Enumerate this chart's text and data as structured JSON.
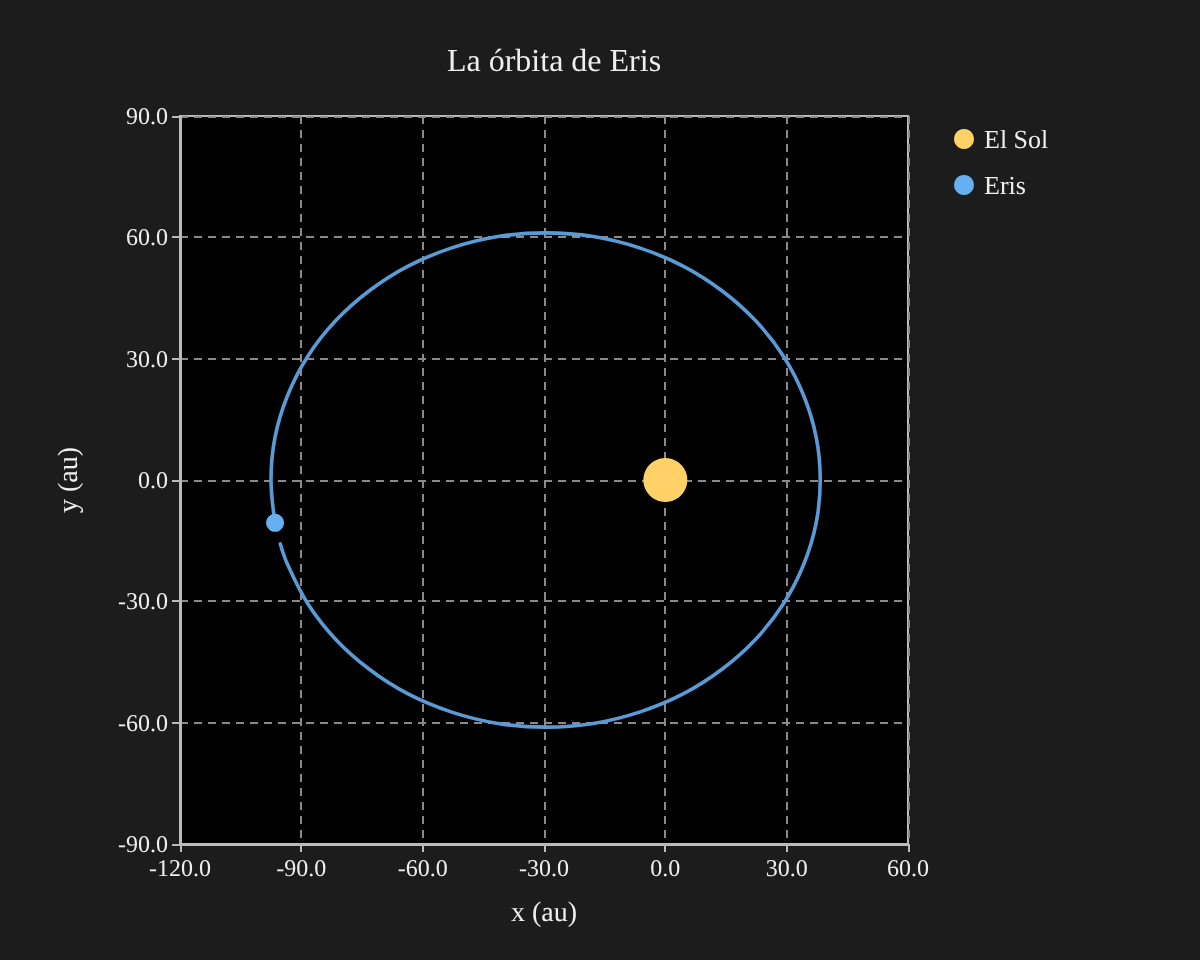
{
  "chart_data": {
    "type": "scatter",
    "title": "La órbita de Eris",
    "xlabel": "x (au)",
    "ylabel": "y (au)",
    "xlim": [
      -120,
      60
    ],
    "xticks": [
      {
        "value": -120,
        "label": "-120.0"
      },
      {
        "value": -90,
        "label": "-90.0"
      },
      {
        "value": -60,
        "label": "-60.0"
      },
      {
        "value": -30,
        "label": "-30.0"
      },
      {
        "value": 0,
        "label": "0.0"
      },
      {
        "value": 30,
        "label": "30.0"
      },
      {
        "value": 60,
        "label": "60.0"
      }
    ],
    "ylim": [
      -90,
      90
    ],
    "yticks": [
      {
        "value": -90,
        "label": "-90.0"
      },
      {
        "value": -60,
        "label": "-60.0"
      },
      {
        "value": -30,
        "label": "-30.0"
      },
      {
        "value": 0,
        "label": "0.0"
      },
      {
        "value": 30,
        "label": "30.0"
      },
      {
        "value": 60,
        "label": "60.0"
      },
      {
        "value": 90,
        "label": "90.0"
      }
    ],
    "grid": true,
    "legend": "top right",
    "marker": "circle",
    "series": [
      {
        "type": "line",
        "marker": "none",
        "color": "#5b9bd5",
        "x": [
          -95.2,
          -93.4,
          -88.4,
          -81.6,
          -73.2,
          -63.6,
          -52.8,
          -41.4,
          -29.6,
          -17.8,
          -6.4,
          4.4,
          14.0,
          22.4,
          29.2,
          34.2,
          37.3,
          38.3,
          37.3,
          34.2,
          29.2,
          22.4,
          14.0,
          4.4,
          -6.4,
          -17.8,
          -29.6,
          -41.4,
          -52.8,
          -63.6,
          -73.2,
          -81.6,
          -88.4,
          -93.4,
          -96.5,
          -97.5,
          -96.5
        ],
        "values": [
          -15.8,
          -20.9,
          -30.6,
          -39.3,
          -46.8,
          -52.9,
          -57.4,
          -60.2,
          -61.1,
          -60.2,
          -57.4,
          -52.9,
          -46.8,
          -39.3,
          -30.6,
          -20.9,
          -10.6,
          0,
          10.6,
          20.9,
          30.6,
          39.3,
          46.8,
          52.9,
          57.4,
          60.2,
          61.1,
          60.2,
          57.4,
          52.9,
          46.8,
          39.3,
          30.6,
          20.9,
          10.6,
          0,
          -10.6
        ]
      },
      {
        "name": "El Sol",
        "color": "#ffd166",
        "x": [
          0
        ],
        "values": [
          0
        ]
      },
      {
        "name": "Eris",
        "color": "#66b0f0",
        "x": [
          -96.5
        ],
        "values": [
          -10.6
        ]
      }
    ]
  }
}
